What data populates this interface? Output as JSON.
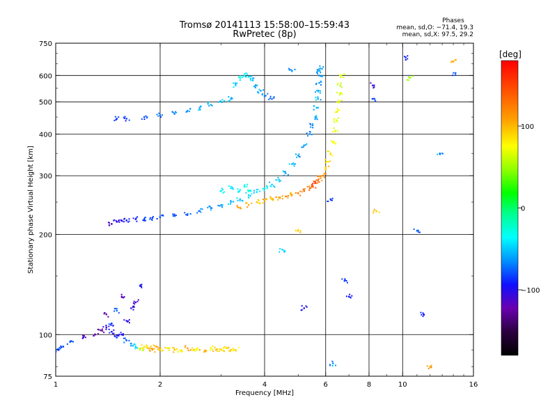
{
  "chart_data": {
    "type": "scatter",
    "title": "Tromsø 20141113 15:58:00–15:59:43",
    "subtitle": "RwPretec (8p)",
    "xlabel": "Frequency [MHz]",
    "ylabel": "Stationary phase Virtual Height [km]",
    "x_scale": "log",
    "y_scale": "log",
    "xlim": [
      1,
      16
    ],
    "ylim": [
      75,
      750
    ],
    "x_ticks": [
      1,
      2,
      4,
      6,
      8,
      10,
      16
    ],
    "x_tick_labels": [
      "1",
      "2",
      "4",
      "6",
      "8",
      "10",
      "16"
    ],
    "y_ticks": [
      75,
      100,
      200,
      300,
      400,
      500,
      600,
      750
    ],
    "y_tick_labels": [
      "75",
      "100",
      "200",
      "300",
      "400",
      "500",
      "600",
      "750"
    ],
    "grid_x": [
      2,
      4,
      6,
      8,
      10
    ],
    "grid_y": [
      100,
      200,
      300,
      400,
      500,
      600
    ],
    "grid": true,
    "stats_title": "Phases",
    "stats": [
      "mean, sd,O: −71.4, 19.3",
      "mean, sd,X:  97.5, 29.2"
    ],
    "colorbar": {
      "label": "[deg]",
      "range": [
        -180,
        180
      ],
      "ticks": [
        100,
        0,
        -100
      ],
      "tick_labels": [
        "100",
        "0",
        "−100"
      ],
      "colors": [
        "#000000",
        "#2a0040",
        "#6a00b0",
        "#1010ff",
        "#0090ff",
        "#00ffff",
        "#00ff90",
        "#00ff00",
        "#90ff00",
        "#ffff00",
        "#ffa000",
        "#ff5000",
        "#ff0000"
      ]
    },
    "series": [
      {
        "trace": "lower_layer_low_freq",
        "x": [
          1.02,
          1.05,
          1.1,
          1.2,
          1.3,
          1.35,
          1.4,
          1.45,
          1.5,
          1.55,
          1.6,
          1.65,
          1.7,
          1.75,
          1.8,
          1.85,
          1.9,
          1.95,
          2.0,
          2.1,
          2.2,
          2.3,
          2.4,
          2.5,
          2.6,
          2.7,
          2.8,
          2.9,
          3.0,
          3.1,
          3.2,
          3.3,
          1.6,
          1.7,
          1.75,
          1.4,
          1.5,
          1.55,
          1.45,
          1.65
        ],
        "y": [
          90,
          92,
          95,
          98,
          100,
          103,
          105,
          102,
          98,
          100,
          96,
          94,
          92,
          90,
          92,
          91,
          90,
          92,
          90,
          91,
          90,
          89,
          91,
          90,
          90,
          89,
          91,
          90,
          90,
          91,
          90,
          90,
          110,
          125,
          140,
          115,
          118,
          130,
          108,
          120
        ],
        "phase": [
          -80,
          -75,
          -70,
          -110,
          -120,
          -130,
          -100,
          -90,
          -85,
          -95,
          -70,
          -60,
          -40,
          80,
          100,
          110,
          120,
          115,
          105,
          100,
          110,
          95,
          120,
          105,
          100,
          110,
          90,
          115,
          100,
          95,
          110,
          100,
          -100,
          -110,
          -90,
          -120,
          -70,
          -110,
          -85,
          -100
        ]
      },
      {
        "trace": "E_F1_trace",
        "x": [
          1.45,
          1.5,
          1.55,
          1.6,
          1.7,
          1.8,
          1.9,
          2.0,
          2.2,
          2.4,
          2.6,
          2.8,
          3.0,
          3.2,
          3.4,
          3.6,
          3.8,
          4.0,
          4.2,
          4.4,
          4.6,
          4.8,
          5.0,
          5.2,
          5.4,
          5.5,
          5.6,
          5.65,
          5.7,
          5.72,
          5.75,
          5.75,
          5.77,
          5.8
        ],
        "y": [
          215,
          218,
          220,
          220,
          222,
          222,
          224,
          225,
          228,
          230,
          235,
          240,
          245,
          250,
          255,
          262,
          268,
          275,
          282,
          292,
          305,
          325,
          345,
          370,
          400,
          425,
          450,
          480,
          510,
          540,
          570,
          600,
          620,
          630
        ],
        "phase": [
          -110,
          -100,
          -95,
          -90,
          -85,
          -80,
          -78,
          -75,
          -72,
          -70,
          -65,
          -60,
          -55,
          -50,
          -45,
          -40,
          -40,
          -35,
          -40,
          -45,
          -50,
          -50,
          -55,
          -55,
          -60,
          -60,
          -55,
          -50,
          -50,
          -55,
          -60,
          -60,
          -55,
          -50
        ]
      },
      {
        "trace": "X_mode_trace",
        "x": [
          3.4,
          3.6,
          3.8,
          4.0,
          4.2,
          4.4,
          4.6,
          4.8,
          5.0,
          5.2,
          5.4,
          5.5,
          5.6,
          5.7,
          5.8,
          5.9,
          6.0,
          6.1,
          6.2,
          6.3,
          6.4,
          6.45,
          6.5,
          6.55,
          6.6,
          6.62,
          6.65
        ],
        "y": [
          240,
          245,
          250,
          252,
          255,
          258,
          260,
          263,
          266,
          270,
          275,
          280,
          285,
          290,
          295,
          300,
          315,
          330,
          350,
          380,
          410,
          440,
          470,
          500,
          530,
          560,
          600
        ],
        "phase": [
          120,
          115,
          110,
          118,
          112,
          120,
          125,
          120,
          130,
          135,
          140,
          150,
          160,
          140,
          120,
          130,
          110,
          100,
          95,
          90,
          85,
          80,
          85,
          90,
          80,
          75,
          80
        ]
      },
      {
        "trace": "upper_echoes_oblique",
        "x": [
          1.5,
          1.6,
          1.8,
          2.0,
          2.2,
          2.4,
          2.6,
          2.8,
          3.0,
          3.2,
          3.3,
          3.4,
          3.5,
          3.6,
          3.7,
          3.8,
          3.9,
          4.0,
          4.2,
          3.0,
          3.2,
          3.4,
          3.5,
          3.6
        ],
        "y": [
          445,
          445,
          450,
          455,
          460,
          470,
          480,
          490,
          500,
          510,
          560,
          590,
          600,
          595,
          580,
          560,
          540,
          520,
          510,
          270,
          275,
          272,
          280,
          270
        ],
        "phase": [
          -85,
          -80,
          -75,
          -70,
          -65,
          -60,
          -55,
          -50,
          -45,
          -50,
          -40,
          -30,
          -35,
          -40,
          -45,
          -50,
          -55,
          -60,
          -70,
          -30,
          -35,
          -30,
          -25,
          -20
        ]
      },
      {
        "trace": "scattered_noise",
        "x": [
          4.5,
          5.0,
          5.2,
          6.3,
          6.8,
          7.0,
          8.2,
          8.3,
          8.4,
          10.2,
          10.5,
          11.0,
          11.5,
          12.0,
          14.0,
          14.2,
          12.8,
          6.2,
          4.8
        ],
        "y": [
          180,
          205,
          120,
          82,
          145,
          130,
          560,
          510,
          235,
          680,
          590,
          205,
          115,
          80,
          660,
          610,
          350,
          255,
          620
        ],
        "phase": [
          -40,
          110,
          -100,
          -60,
          -80,
          -90,
          -100,
          -80,
          110,
          -90,
          60,
          -70,
          -90,
          120,
          120,
          -80,
          -60,
          -80,
          -60
        ]
      }
    ]
  }
}
